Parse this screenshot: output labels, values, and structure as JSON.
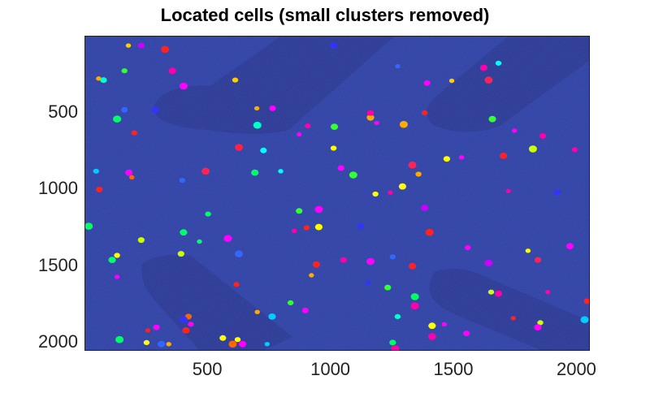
{
  "title": "Located cells (small clusters removed)",
  "image_colors": {
    "background": "#2a3a9e",
    "shadow": "#25318a"
  },
  "chart_data": {
    "type": "scatter",
    "title": "Located cells (small clusters removed)",
    "xlabel": "",
    "ylabel": "",
    "xlim": [
      1,
      2048
    ],
    "ylim": [
      2048,
      1
    ],
    "y_axis_reversed": true,
    "x_ticks": [
      "500",
      "1000",
      "1500",
      "2000"
    ],
    "y_ticks": [
      "500",
      "1000",
      "1500",
      "2000"
    ],
    "grid": false,
    "points": [
      {
        "x": 176,
        "y": 60,
        "c": "#ffcc00"
      },
      {
        "x": 228,
        "y": 60,
        "c": "#cc00ff"
      },
      {
        "x": 325,
        "y": 85,
        "c": "#ff2222"
      },
      {
        "x": 160,
        "y": 225,
        "c": "#33ff33"
      },
      {
        "x": 355,
        "y": 225,
        "c": "#ff00aa"
      },
      {
        "x": 55,
        "y": 275,
        "c": "#ffaa00"
      },
      {
        "x": 75,
        "y": 285,
        "c": "#00ffcc"
      },
      {
        "x": 400,
        "y": 325,
        "c": "#ff00ff"
      },
      {
        "x": 610,
        "y": 285,
        "c": "#ffcc00"
      },
      {
        "x": 1010,
        "y": 60,
        "c": "#3333ff"
      },
      {
        "x": 1270,
        "y": 195,
        "c": "#3366ff"
      },
      {
        "x": 1390,
        "y": 305,
        "c": "#ff00ff"
      },
      {
        "x": 1640,
        "y": 285,
        "c": "#ff2255"
      },
      {
        "x": 1680,
        "y": 175,
        "c": "#00ffff"
      },
      {
        "x": 1620,
        "y": 205,
        "c": "#ff00aa"
      },
      {
        "x": 1490,
        "y": 290,
        "c": "#ffcc00"
      },
      {
        "x": 160,
        "y": 480,
        "c": "#3366ff"
      },
      {
        "x": 130,
        "y": 540,
        "c": "#00ff66"
      },
      {
        "x": 200,
        "y": 630,
        "c": "#ff2222"
      },
      {
        "x": 285,
        "y": 480,
        "c": "#3333ff"
      },
      {
        "x": 698,
        "y": 470,
        "c": "#ffaa00"
      },
      {
        "x": 762,
        "y": 470,
        "c": "#ff00ff"
      },
      {
        "x": 700,
        "y": 580,
        "c": "#00ffcc"
      },
      {
        "x": 905,
        "y": 585,
        "c": "#ff00aa"
      },
      {
        "x": 1013,
        "y": 590,
        "c": "#33ff33"
      },
      {
        "x": 870,
        "y": 640,
        "c": "#ff00ff"
      },
      {
        "x": 725,
        "y": 745,
        "c": "#00ffff"
      },
      {
        "x": 625,
        "y": 725,
        "c": "#ff2244"
      },
      {
        "x": 1010,
        "y": 730,
        "c": "#ffff00"
      },
      {
        "x": 1160,
        "y": 530,
        "c": "#ffaa00"
      },
      {
        "x": 1185,
        "y": 565,
        "c": "#ff00ff"
      },
      {
        "x": 1160,
        "y": 500,
        "c": "#ff00aa"
      },
      {
        "x": 1295,
        "y": 575,
        "c": "#ffaa00"
      },
      {
        "x": 1380,
        "y": 500,
        "c": "#ff2222"
      },
      {
        "x": 1655,
        "y": 540,
        "c": "#33ff33"
      },
      {
        "x": 1745,
        "y": 615,
        "c": "#ff00ff"
      },
      {
        "x": 1860,
        "y": 650,
        "c": "#ff00aa"
      },
      {
        "x": 1820,
        "y": 735,
        "c": "#ccff00"
      },
      {
        "x": 1990,
        "y": 740,
        "c": "#ff00aa"
      },
      {
        "x": 1700,
        "y": 780,
        "c": "#ff2222"
      },
      {
        "x": 1530,
        "y": 790,
        "c": "#ff00ff"
      },
      {
        "x": 1470,
        "y": 800,
        "c": "#ffff00"
      },
      {
        "x": 1330,
        "y": 840,
        "c": "#ff2255"
      },
      {
        "x": 1355,
        "y": 900,
        "c": "#ffaa00"
      },
      {
        "x": 1290,
        "y": 980,
        "c": "#ffff00"
      },
      {
        "x": 1240,
        "y": 1020,
        "c": "#ff00aa"
      },
      {
        "x": 1040,
        "y": 860,
        "c": "#ff00ff"
      },
      {
        "x": 1090,
        "y": 905,
        "c": "#33ff33"
      },
      {
        "x": 45,
        "y": 880,
        "c": "#00ccff"
      },
      {
        "x": 178,
        "y": 890,
        "c": "#ff00ff"
      },
      {
        "x": 190,
        "y": 920,
        "c": "#ff6600"
      },
      {
        "x": 58,
        "y": 1000,
        "c": "#ff2222"
      },
      {
        "x": 490,
        "y": 880,
        "c": "#ff2255"
      },
      {
        "x": 395,
        "y": 940,
        "c": "#3366ff"
      },
      {
        "x": 690,
        "y": 890,
        "c": "#00ff66"
      },
      {
        "x": 795,
        "y": 880,
        "c": "#00ffff"
      },
      {
        "x": 870,
        "y": 1140,
        "c": "#33ff33"
      },
      {
        "x": 950,
        "y": 1130,
        "c": "#ff00ff"
      },
      {
        "x": 1180,
        "y": 1030,
        "c": "#ffff00"
      },
      {
        "x": 1380,
        "y": 1120,
        "c": "#cc00ff"
      },
      {
        "x": 1720,
        "y": 1010,
        "c": "#ff00aa"
      },
      {
        "x": 1920,
        "y": 1020,
        "c": "#3333ff"
      },
      {
        "x": 15,
        "y": 1240,
        "c": "#00ff66"
      },
      {
        "x": 500,
        "y": 1160,
        "c": "#00ff66"
      },
      {
        "x": 400,
        "y": 1280,
        "c": "#00ff66"
      },
      {
        "x": 465,
        "y": 1340,
        "c": "#00ff66"
      },
      {
        "x": 228,
        "y": 1330,
        "c": "#ccff00"
      },
      {
        "x": 580,
        "y": 1320,
        "c": "#ff00ff"
      },
      {
        "x": 900,
        "y": 1250,
        "c": "#ff2222"
      },
      {
        "x": 950,
        "y": 1245,
        "c": "#ffff00"
      },
      {
        "x": 850,
        "y": 1270,
        "c": "#ff00aa"
      },
      {
        "x": 1120,
        "y": 1240,
        "c": "#3333ff"
      },
      {
        "x": 1400,
        "y": 1280,
        "c": "#ff2222"
      },
      {
        "x": 1555,
        "y": 1380,
        "c": "#ff00ff"
      },
      {
        "x": 1970,
        "y": 1370,
        "c": "#ff00ff"
      },
      {
        "x": 1800,
        "y": 1400,
        "c": "#ffff00"
      },
      {
        "x": 1840,
        "y": 1460,
        "c": "#ff2255"
      },
      {
        "x": 1640,
        "y": 1480,
        "c": "#cc00ff"
      },
      {
        "x": 130,
        "y": 1430,
        "c": "#ffff00"
      },
      {
        "x": 110,
        "y": 1460,
        "c": "#00ff66"
      },
      {
        "x": 130,
        "y": 1570,
        "c": "#ff00ff"
      },
      {
        "x": 390,
        "y": 1420,
        "c": "#ccff00"
      },
      {
        "x": 625,
        "y": 1420,
        "c": "#3366ff"
      },
      {
        "x": 615,
        "y": 1620,
        "c": "#ff2222"
      },
      {
        "x": 940,
        "y": 1490,
        "c": "#ff2222"
      },
      {
        "x": 920,
        "y": 1560,
        "c": "#ffaa00"
      },
      {
        "x": 1050,
        "y": 1460,
        "c": "#ff00aa"
      },
      {
        "x": 1160,
        "y": 1470,
        "c": "#ff00ff"
      },
      {
        "x": 1250,
        "y": 1440,
        "c": "#3366ff"
      },
      {
        "x": 1330,
        "y": 1500,
        "c": "#ff2222"
      },
      {
        "x": 1150,
        "y": 1610,
        "c": "#3333ff"
      },
      {
        "x": 1230,
        "y": 1640,
        "c": "#33ff33"
      },
      {
        "x": 1340,
        "y": 1700,
        "c": "#00ff66"
      },
      {
        "x": 1650,
        "y": 1670,
        "c": "#ccff00"
      },
      {
        "x": 1680,
        "y": 1680,
        "c": "#ff00aa"
      },
      {
        "x": 1880,
        "y": 1670,
        "c": "#ff00aa"
      },
      {
        "x": 2040,
        "y": 1730,
        "c": "#ff2222"
      },
      {
        "x": 2030,
        "y": 1850,
        "c": "#00ccff"
      },
      {
        "x": 835,
        "y": 1740,
        "c": "#33ff33"
      },
      {
        "x": 760,
        "y": 1830,
        "c": "#00ccff"
      },
      {
        "x": 700,
        "y": 1800,
        "c": "#ffaa00"
      },
      {
        "x": 895,
        "y": 1790,
        "c": "#ff00ff"
      },
      {
        "x": 1340,
        "y": 1760,
        "c": "#ff00aa"
      },
      {
        "x": 1270,
        "y": 1830,
        "c": "#00ffcc"
      },
      {
        "x": 1410,
        "y": 1890,
        "c": "#ffff00"
      },
      {
        "x": 1460,
        "y": 1880,
        "c": "#ff00ff"
      },
      {
        "x": 1550,
        "y": 1940,
        "c": "#ff00ff"
      },
      {
        "x": 1410,
        "y": 1960,
        "c": "#ff00aa"
      },
      {
        "x": 1850,
        "y": 1870,
        "c": "#ccff00"
      },
      {
        "x": 1840,
        "y": 1900,
        "c": "#ff00ff"
      },
      {
        "x": 1740,
        "y": 1840,
        "c": "#ff2222"
      },
      {
        "x": 420,
        "y": 1830,
        "c": "#ff6600"
      },
      {
        "x": 400,
        "y": 1850,
        "c": "#3333ff"
      },
      {
        "x": 430,
        "y": 1880,
        "c": "#ff00ff"
      },
      {
        "x": 410,
        "y": 1920,
        "c": "#ff2222"
      },
      {
        "x": 255,
        "y": 1920,
        "c": "#ff2222"
      },
      {
        "x": 290,
        "y": 1900,
        "c": "#ff00ff"
      },
      {
        "x": 140,
        "y": 1980,
        "c": "#00ff66"
      },
      {
        "x": 250,
        "y": 2000,
        "c": "#ffff00"
      },
      {
        "x": 310,
        "y": 2010,
        "c": "#3366ff"
      },
      {
        "x": 340,
        "y": 2010,
        "c": "#ffaa00"
      },
      {
        "x": 560,
        "y": 1970,
        "c": "#ffff00"
      },
      {
        "x": 600,
        "y": 2010,
        "c": "#ff6600"
      },
      {
        "x": 620,
        "y": 1980,
        "c": "#ffff00"
      },
      {
        "x": 640,
        "y": 2010,
        "c": "#ff00ff"
      },
      {
        "x": 740,
        "y": 2010,
        "c": "#00ccff"
      },
      {
        "x": 1250,
        "y": 2000,
        "c": "#00ff66"
      },
      {
        "x": 1260,
        "y": 2040,
        "c": "#ff00aa"
      }
    ]
  }
}
